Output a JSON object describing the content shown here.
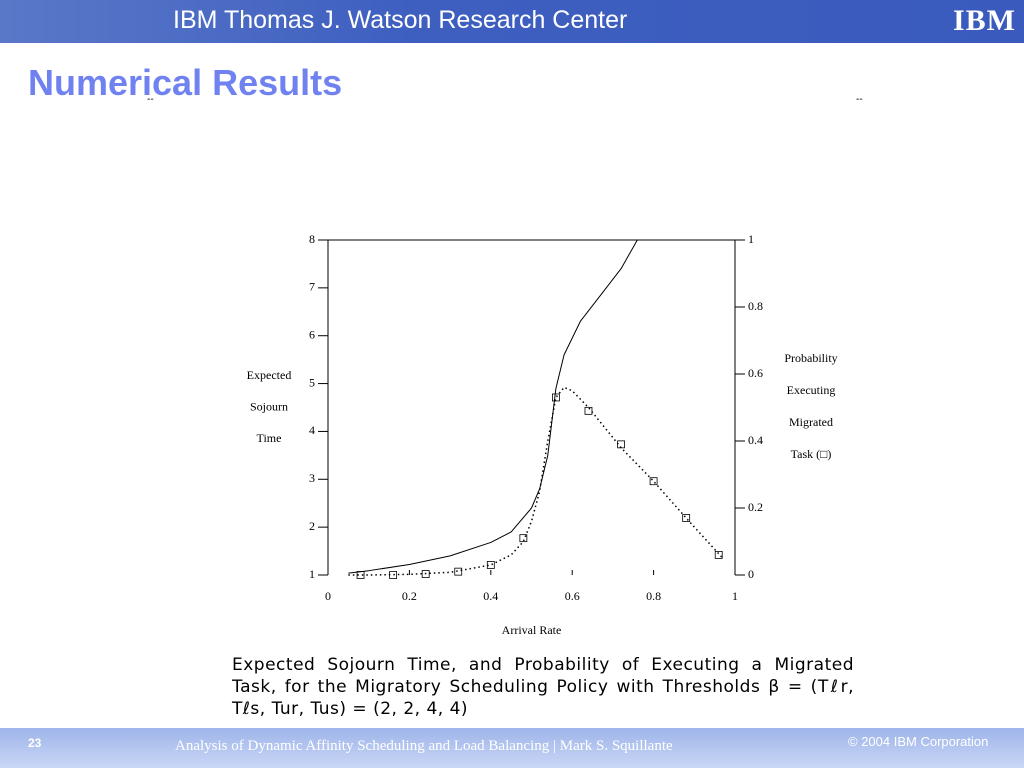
{
  "header": {
    "title": "IBM Thomas J. Watson Research Center",
    "logo": "IBM"
  },
  "title": "Numerical Results",
  "marks": [
    "--",
    "--"
  ],
  "chart_data": {
    "type": "line",
    "xlabel": "Arrival Rate",
    "ylabel": [
      "Expected",
      "Sojourn",
      "Time"
    ],
    "y2label": [
      "Probability",
      "Executing",
      "Migrated",
      "Task (□)"
    ],
    "xlim": [
      0,
      1
    ],
    "xticks": [
      0,
      0.2,
      0.4,
      0.6,
      0.8,
      1
    ],
    "ylim": [
      1,
      8
    ],
    "yticks": [
      1,
      2,
      3,
      4,
      5,
      6,
      7,
      8
    ],
    "y2lim": [
      0,
      1
    ],
    "y2ticks": [
      0,
      0.2,
      0.4,
      0.6,
      0.8,
      1
    ],
    "series": [
      {
        "style": "solid",
        "color": "#000000",
        "x": [
          0.05,
          0.1,
          0.2,
          0.3,
          0.4,
          0.45,
          0.5,
          0.52,
          0.54,
          0.55,
          0.56,
          0.58,
          0.62,
          0.67,
          0.72,
          0.76
        ],
        "values": [
          1.04,
          1.09,
          1.22,
          1.4,
          1.68,
          1.9,
          2.4,
          2.8,
          3.5,
          4.2,
          4.9,
          5.6,
          6.3,
          6.85,
          7.4,
          8.0
        ]
      },
      {
        "style": "dotted",
        "color": "#000000",
        "axis": "y2",
        "x": [
          0.05,
          0.1,
          0.2,
          0.3,
          0.4,
          0.45,
          0.48,
          0.5,
          0.52,
          0.54,
          0.56,
          0.58,
          0.6,
          0.64,
          0.72,
          0.8,
          0.88,
          0.97
        ],
        "values": [
          0,
          0,
          0.002,
          0.008,
          0.03,
          0.06,
          0.1,
          0.16,
          0.25,
          0.4,
          0.53,
          0.56,
          0.55,
          0.5,
          0.38,
          0.28,
          0.17,
          0.05
        ]
      },
      {
        "style": "markers",
        "color": "#000000",
        "axis": "y2",
        "x": [
          0.08,
          0.16,
          0.24,
          0.32,
          0.4,
          0.48,
          0.56,
          0.64,
          0.72,
          0.8,
          0.88,
          0.96
        ],
        "values": [
          0,
          0,
          0.003,
          0.01,
          0.03,
          0.11,
          0.53,
          0.49,
          0.39,
          0.28,
          0.17,
          0.06
        ]
      }
    ]
  },
  "caption": "Expected Sojourn Time, and Probability of Executing a Migrated Task, for the Migratory Scheduling Policy with Thresholds β = (Tℓr, Tℓs, Tur, Tus) = (2, 2, 4, 4)",
  "footer": {
    "page": "23",
    "text": "Analysis of Dynamic Affinity Scheduling and Load Balancing  |  Mark S. Squillante",
    "copyright": "© 2004 IBM Corporation"
  }
}
